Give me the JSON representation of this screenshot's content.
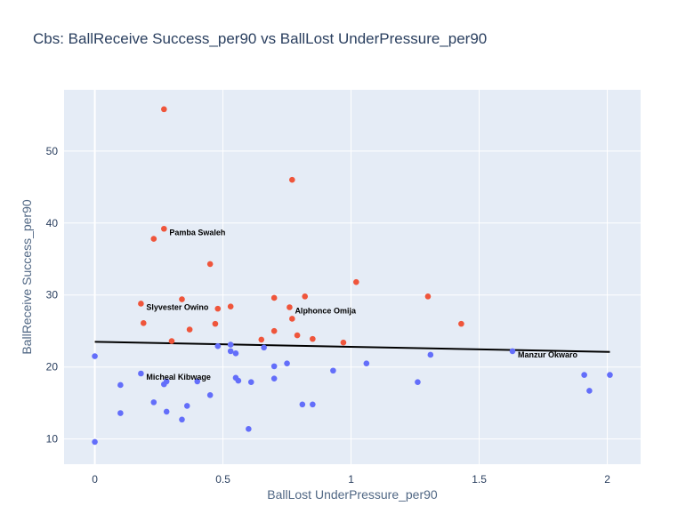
{
  "chart_data": {
    "type": "scatter",
    "title": "Cbs: BallReceive Success_per90 vs BallLost UnderPressure_per90",
    "xlabel": "BallLost UnderPressure_per90",
    "ylabel": "BallReceive Success_per90",
    "xlim": [
      -0.12,
      2.13
    ],
    "ylim": [
      6.5,
      58.5
    ],
    "x_ticks": [
      0,
      0.5,
      1,
      1.5,
      2
    ],
    "x_tick_labels": [
      "0",
      "0.5",
      "1",
      "1.5",
      "2"
    ],
    "y_ticks": [
      10,
      20,
      30,
      40,
      50
    ],
    "y_tick_labels": [
      "10",
      "20",
      "30",
      "40",
      "50"
    ],
    "grid": true,
    "plot_background": "#e5ecf6",
    "series": [
      {
        "color": "#636efa",
        "points": [
          [
            0.0,
            21.5
          ],
          [
            0.0,
            9.6
          ],
          [
            0.1,
            17.5
          ],
          [
            0.1,
            13.6
          ],
          [
            0.18,
            19.1
          ],
          [
            0.23,
            15.1
          ],
          [
            0.27,
            17.6
          ],
          [
            0.28,
            18.0
          ],
          [
            0.28,
            13.8
          ],
          [
            0.34,
            12.7
          ],
          [
            0.36,
            14.6
          ],
          [
            0.4,
            18.0
          ],
          [
            0.45,
            16.1
          ],
          [
            0.48,
            22.9
          ],
          [
            0.53,
            23.1
          ],
          [
            0.53,
            22.2
          ],
          [
            0.55,
            21.9
          ],
          [
            0.55,
            18.5
          ],
          [
            0.56,
            18.1
          ],
          [
            0.6,
            11.4
          ],
          [
            0.61,
            17.9
          ],
          [
            0.66,
            22.7
          ],
          [
            0.7,
            20.1
          ],
          [
            0.7,
            18.4
          ],
          [
            0.75,
            20.5
          ],
          [
            0.81,
            14.8
          ],
          [
            0.85,
            14.8
          ],
          [
            0.93,
            19.5
          ],
          [
            1.06,
            20.5
          ],
          [
            1.26,
            17.9
          ],
          [
            1.31,
            21.7
          ],
          [
            1.63,
            22.2
          ],
          [
            1.91,
            18.9
          ],
          [
            1.93,
            16.7
          ],
          [
            2.01,
            18.9
          ]
        ]
      },
      {
        "color": "#ef553b",
        "points": [
          [
            0.27,
            55.8
          ],
          [
            0.27,
            39.2
          ],
          [
            0.23,
            37.8
          ],
          [
            0.45,
            34.3
          ],
          [
            0.34,
            29.4
          ],
          [
            0.18,
            28.8
          ],
          [
            0.19,
            26.1
          ],
          [
            0.3,
            23.6
          ],
          [
            0.37,
            25.2
          ],
          [
            0.47,
            26.0
          ],
          [
            0.48,
            28.1
          ],
          [
            0.53,
            28.4
          ],
          [
            0.65,
            23.8
          ],
          [
            0.7,
            29.6
          ],
          [
            0.7,
            25.0
          ],
          [
            0.76,
            28.3
          ],
          [
            0.77,
            46.0
          ],
          [
            0.77,
            26.7
          ],
          [
            0.79,
            24.4
          ],
          [
            0.82,
            29.8
          ],
          [
            0.85,
            23.9
          ],
          [
            0.97,
            23.4
          ],
          [
            1.02,
            31.8
          ],
          [
            1.3,
            29.8
          ],
          [
            1.43,
            26.0
          ]
        ]
      }
    ],
    "trendline": {
      "color": "#000000",
      "points": [
        [
          0.0,
          23.5
        ],
        [
          2.01,
          22.1
        ]
      ]
    },
    "annotations": [
      {
        "text": "Pamba Swaleh",
        "x": 0.27,
        "y": 39.2
      },
      {
        "text": "Slyvester Owino",
        "x": 0.18,
        "y": 28.8
      },
      {
        "text": "Alphonce Omija",
        "x": 0.76,
        "y": 28.3
      },
      {
        "text": "Micheal Kibwage",
        "x": 0.18,
        "y": 19.1
      },
      {
        "text": "Manzur Okwaro",
        "x": 1.63,
        "y": 22.2
      }
    ]
  }
}
